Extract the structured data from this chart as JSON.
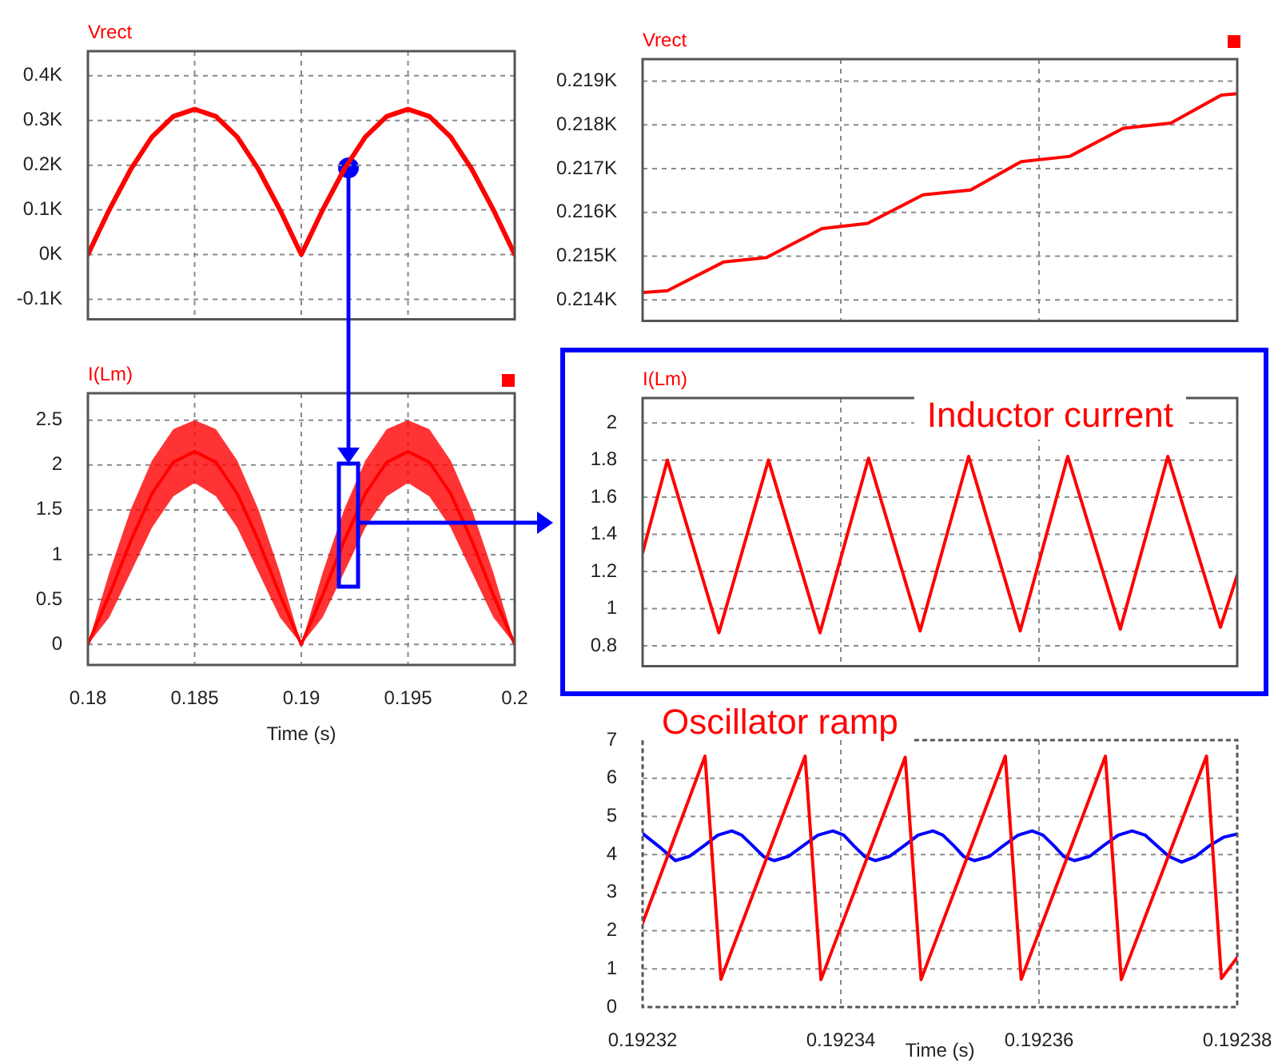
{
  "chart_data": [
    {
      "type": "line",
      "legend": "top left",
      "marker": "none",
      "line_style": "solid",
      "grid": true,
      "tick_labels": "y",
      "x": [
        0.18,
        0.181,
        0.182,
        0.183,
        0.184,
        0.185,
        0.186,
        0.187,
        0.188,
        0.189,
        0.19,
        0.191,
        0.192,
        0.193,
        0.194,
        0.195,
        0.196,
        0.197,
        0.198,
        0.199,
        0.2
      ],
      "series": [
        {
          "name": "Vrect",
          "color": "#ff0000",
          "values": [
            0,
            0.1,
            0.19,
            0.263,
            0.309,
            0.325,
            0.309,
            0.263,
            0.19,
            0.1,
            0,
            0.1,
            0.19,
            0.263,
            0.309,
            0.325,
            0.309,
            0.263,
            0.19,
            0.1,
            0
          ]
        }
      ],
      "xlim": [
        0.18,
        0.2
      ],
      "xticks": [
        0.18,
        0.185,
        0.19,
        0.195,
        0.2
      ],
      "ylim": [
        -0.145,
        0.455
      ],
      "yticks": [
        {
          "value": -0.1,
          "label": "-0.1K"
        },
        {
          "value": 0,
          "label": "0K"
        },
        {
          "value": 0.1,
          "label": "0.1K"
        },
        {
          "value": 0.2,
          "label": "0.2K"
        },
        {
          "value": 0.3,
          "label": "0.3K"
        },
        {
          "value": 0.4,
          "label": "0.4K"
        }
      ]
    },
    {
      "type": "line",
      "legend": "top left",
      "marker": "none",
      "line_style": "solid",
      "grid": true,
      "xlabel": "Time (s)",
      "x": [
        0.18,
        0.181,
        0.182,
        0.183,
        0.184,
        0.185,
        0.186,
        0.187,
        0.188,
        0.189,
        0.19,
        0.191,
        0.192,
        0.193,
        0.194,
        0.195,
        0.196,
        0.197,
        0.198,
        0.199,
        0.2
      ],
      "series": [
        {
          "name": "I(Lm)",
          "color": "#ff0000",
          "values": [
            0,
            0.55,
            1.15,
            1.68,
            2.03,
            2.15,
            2.03,
            1.68,
            1.15,
            0.55,
            0,
            0.55,
            1.15,
            1.68,
            2.03,
            2.15,
            2.03,
            1.68,
            1.15,
            0.55,
            0
          ],
          "lower": [
            0,
            0.3,
            0.8,
            1.3,
            1.65,
            1.8,
            1.65,
            1.3,
            0.8,
            0.3,
            0,
            0.3,
            0.8,
            1.3,
            1.65,
            1.8,
            1.65,
            1.3,
            0.8,
            0.3,
            0
          ],
          "upper": [
            0,
            0.8,
            1.5,
            2.05,
            2.4,
            2.5,
            2.4,
            2.05,
            1.5,
            0.8,
            0,
            0.8,
            1.5,
            2.05,
            2.4,
            2.5,
            2.4,
            2.05,
            1.5,
            0.8,
            0
          ]
        }
      ],
      "xlim": [
        0.18,
        0.2
      ],
      "xticks": [
        0.18,
        0.185,
        0.19,
        0.195,
        0.2
      ],
      "ylim": [
        -0.23,
        2.8
      ],
      "yticks": [
        0,
        0.5,
        1,
        1.5,
        2,
        2.5
      ]
    },
    {
      "type": "line",
      "legend": "top left",
      "marker": "none",
      "line_style": "solid",
      "grid": true,
      "tick_labels": "y",
      "x": [
        0.19232,
        0.1923225,
        0.1923282,
        0.1923325,
        0.1923381,
        0.1923427,
        0.1923483,
        0.1923531,
        0.1923582,
        0.1923631,
        0.1923685,
        0.1923733,
        0.1923784,
        0.19238
      ],
      "series": [
        {
          "name": "Vrect",
          "color": "#ff0000",
          "values": [
            0.21417,
            0.21421,
            0.21487,
            0.21497,
            0.21563,
            0.21575,
            0.2164,
            0.21651,
            0.21716,
            0.21728,
            0.21792,
            0.21804,
            0.21868,
            0.21871
          ]
        }
      ],
      "xlim": [
        0.19232,
        0.19238
      ],
      "xticks": [
        0.19232,
        0.19234,
        0.19236,
        0.19238
      ],
      "ylim": [
        0.21352,
        0.2195
      ],
      "yticks": [
        {
          "value": 0.214,
          "label": "0.214K"
        },
        {
          "value": 0.215,
          "label": "0.215K"
        },
        {
          "value": 0.216,
          "label": "0.216K"
        },
        {
          "value": 0.217,
          "label": "0.217K"
        },
        {
          "value": 0.218,
          "label": "0.218K"
        },
        {
          "value": 0.219,
          "label": "0.219K"
        }
      ]
    },
    {
      "type": "line",
      "legend": "top left",
      "marker": "none",
      "line_style": "solid",
      "grid": true,
      "tick_labels": "y",
      "annotations": [
        "Inductor current"
      ],
      "x": [
        0.19232,
        0.1923225,
        0.1923277,
        0.1923327,
        0.1923379,
        0.1923428,
        0.192348,
        0.1923529,
        0.1923581,
        0.1923629,
        0.1923682,
        0.192373,
        0.1923783,
        0.19238
      ],
      "series": [
        {
          "name": "I(Lm)",
          "color": "#ff0000",
          "values": [
            1.3,
            1.8,
            0.87,
            1.8,
            0.87,
            1.81,
            0.88,
            1.82,
            0.88,
            1.82,
            0.89,
            1.82,
            0.9,
            1.18
          ]
        }
      ],
      "xlim": [
        0.19232,
        0.19238
      ],
      "xticks": [
        0.19232,
        0.19234,
        0.19236,
        0.19238
      ],
      "ylim": [
        0.69,
        2.134
      ],
      "yticks": [
        0.8,
        1,
        1.2,
        1.4,
        1.6,
        1.8,
        2
      ]
    },
    {
      "type": "line",
      "marker": "none",
      "line_style": "solid",
      "grid": true,
      "xlabel": "Time (s)",
      "annotations": [
        "Oscillator ramp"
      ],
      "series": [
        {
          "color": "#ff0000",
          "x": [
            0.19232,
            0.1923263,
            0.1923279,
            0.1923364,
            0.192338,
            0.1923465,
            0.1923481,
            0.1923566,
            0.1923582,
            0.1923667,
            0.1923683,
            0.1923769,
            0.1923784,
            0.19238
          ],
          "values": [
            2.2,
            6.58,
            0.73,
            6.58,
            0.72,
            6.55,
            0.72,
            6.58,
            0.73,
            6.58,
            0.72,
            6.58,
            0.75,
            1.3
          ]
        },
        {
          "color": "#0000ff",
          "x": [
            0.19232,
            0.1923217,
            0.1923233,
            0.1923247,
            0.1923262,
            0.1923276,
            0.192329,
            0.19233,
            0.1923311,
            0.1923322,
            0.1923333,
            0.1923347,
            0.1923362,
            0.1923377,
            0.1923392,
            0.1923403,
            0.1923413,
            0.1923424,
            0.1923435,
            0.1923449,
            0.1923464,
            0.1923478,
            0.1923493,
            0.1923503,
            0.1923514,
            0.1923524,
            0.1923535,
            0.192355,
            0.1923564,
            0.1923579,
            0.1923593,
            0.1923604,
            0.1923615,
            0.1923625,
            0.1923636,
            0.1923651,
            0.1923665,
            0.192368,
            0.1923694,
            0.1923707,
            0.1923719,
            0.1923731,
            0.1923744,
            0.1923758,
            0.1923772,
            0.1923786,
            0.19238
          ],
          "values": [
            4.55,
            4.2,
            3.84,
            3.95,
            4.23,
            4.51,
            4.62,
            4.51,
            4.23,
            3.95,
            3.84,
            3.95,
            4.23,
            4.51,
            4.62,
            4.51,
            4.23,
            3.95,
            3.84,
            3.95,
            4.23,
            4.51,
            4.62,
            4.51,
            4.23,
            3.95,
            3.84,
            3.95,
            4.23,
            4.51,
            4.62,
            4.51,
            4.23,
            3.95,
            3.84,
            3.95,
            4.23,
            4.51,
            4.62,
            4.51,
            4.23,
            3.95,
            3.8,
            3.95,
            4.23,
            4.45,
            4.54
          ]
        }
      ],
      "xlim": [
        0.19232,
        0.19238
      ],
      "xticks": [
        0.19232,
        0.19234,
        0.19236,
        0.19238
      ],
      "ylim": [
        0,
        7
      ],
      "yticks": [
        0,
        1,
        2,
        3,
        4,
        5,
        6,
        7
      ]
    }
  ]
}
